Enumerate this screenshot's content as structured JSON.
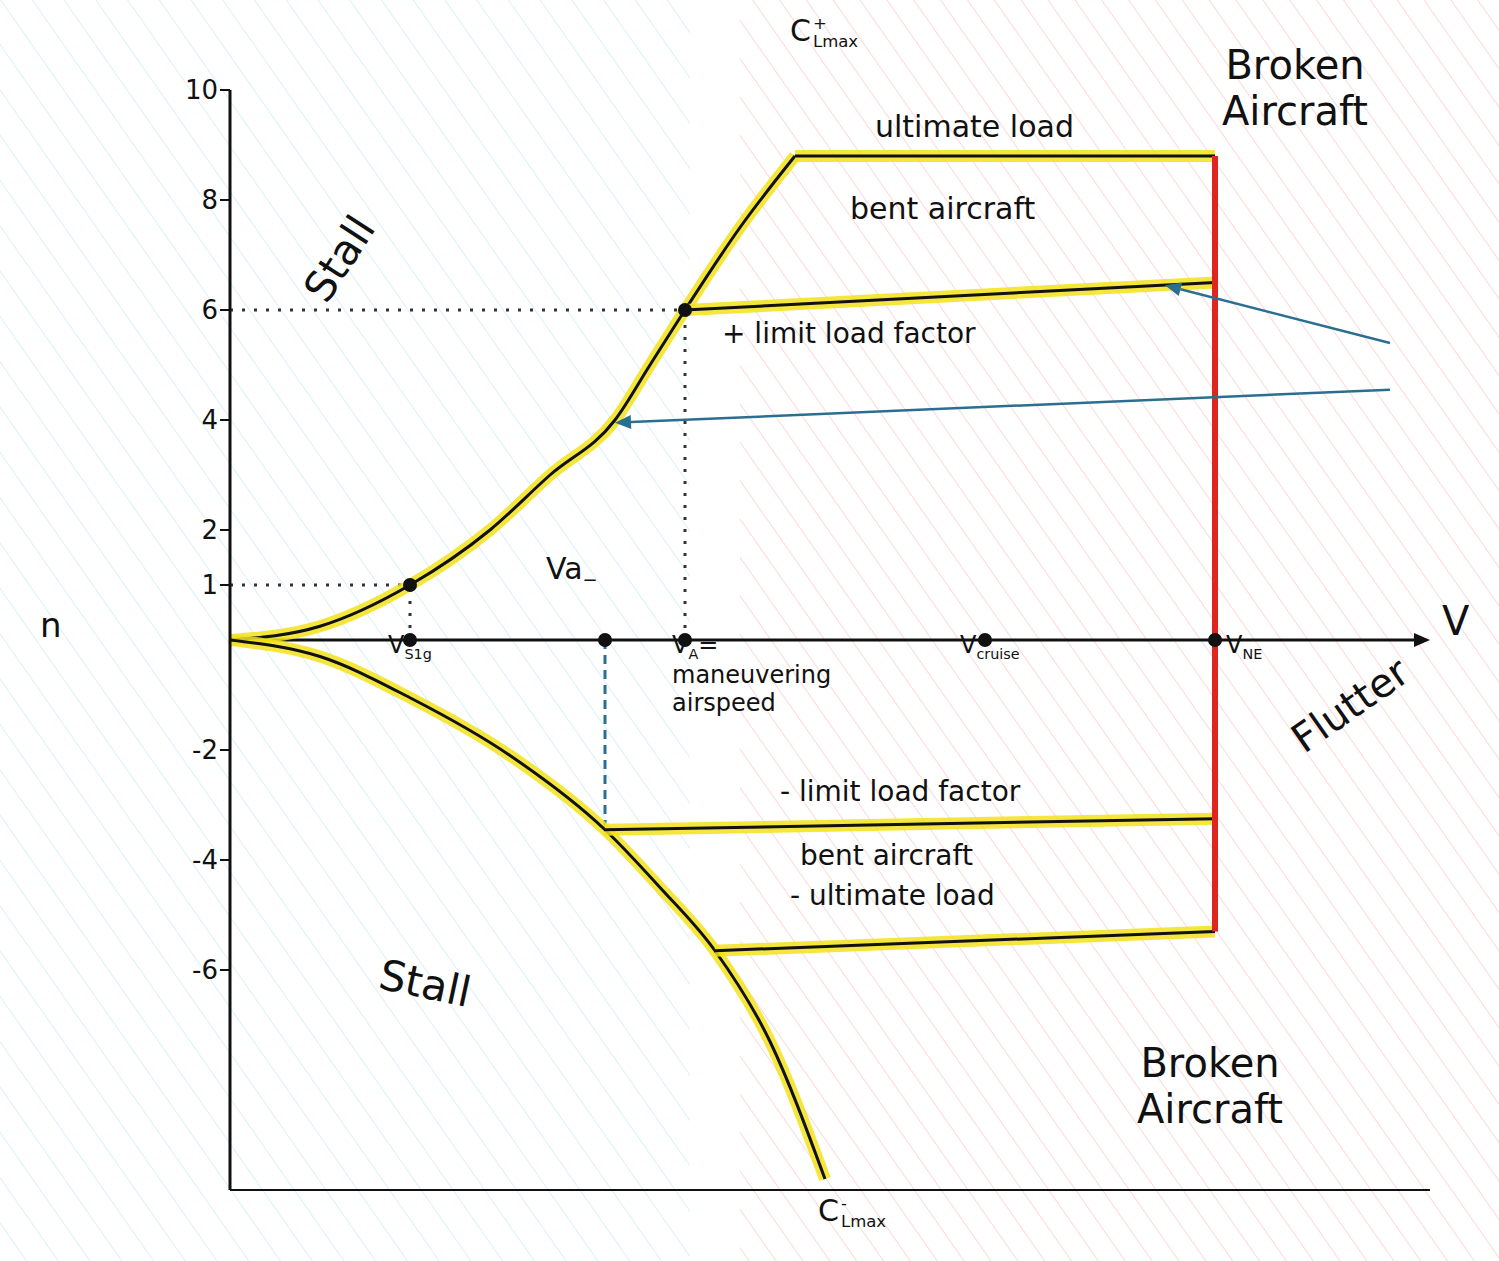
{
  "chart_data": {
    "type": "line",
    "x_label": "V",
    "y_label": "n",
    "xlim": [
      0,
      12
    ],
    "ylim": [
      -10,
      10
    ],
    "yticks": [
      -6,
      -4,
      -2,
      1,
      2,
      4,
      6,
      8,
      10
    ],
    "tick_labels": "y",
    "grid": false,
    "series": [
      {
        "name": {
          "text": "C",
          "sub": "Lmax",
          "sup": "+"
        },
        "color": "#111111",
        "x": [
          0,
          0.9,
          1.8,
          2.6,
          3.2,
          3.85,
          4.2,
          4.55,
          5.1,
          5.65
        ],
        "values": [
          0,
          0.25,
          1,
          2,
          3,
          4,
          5,
          6,
          7.5,
          8.8
        ]
      },
      {
        "name": {
          "text": "C",
          "sub": "Lmax",
          "sup": "-"
        },
        "color": "#111111",
        "x": [
          0,
          0.9,
          1.8,
          2.8,
          3.75,
          4.3,
          4.85,
          5.4,
          5.95
        ],
        "values": [
          0,
          -0.3,
          -1.05,
          -2.1,
          -3.45,
          -4.5,
          -5.65,
          -7.3,
          -9.8
        ]
      },
      {
        "name": "+ limit load factor",
        "color": "#111111",
        "x": [
          4.55,
          9.85
        ],
        "values": [
          6,
          6.5
        ]
      },
      {
        "name": "ultimate load",
        "color": "#111111",
        "x": [
          5.65,
          9.85
        ],
        "values": [
          8.8,
          8.8
        ]
      },
      {
        "name": "- limit load factor",
        "color": "#111111",
        "x": [
          3.75,
          9.85
        ],
        "values": [
          -3.45,
          -3.25
        ]
      },
      {
        "name": "- ultimate load",
        "color": "#111111",
        "x": [
          4.85,
          9.85
        ],
        "values": [
          -5.65,
          -5.3
        ]
      },
      {
        "color": "#e0241f",
        "x": [
          9.85,
          9.85
        ],
        "values": [
          8.8,
          -5.3
        ]
      }
    ],
    "axis_points": [
      {
        "label": {
          "text": "V",
          "sub": "S1g"
        },
        "x": 1.8
      },
      {
        "label": {
          "text": "Va",
          "sub": "−"
        },
        "x": 3.75
      },
      {
        "label": {
          "text": "V",
          "sub": "A",
          "rest": "= maneuvering airspeed"
        },
        "x": 4.55
      },
      {
        "label": {
          "text": "V",
          "sub": "cruise"
        },
        "x": 7.55
      },
      {
        "label": {
          "text": "V",
          "sub": "NE"
        },
        "x": 9.85
      }
    ],
    "guides": [
      {
        "x": 1.8,
        "y": 1,
        "line_style": "dotted",
        "marker": "circle"
      },
      {
        "x": 4.55,
        "y": 6,
        "line_style": "dotted",
        "marker": "circle"
      },
      {
        "x": 3.75,
        "y": -3.45,
        "line_style": "dashed",
        "color": "#2a6f8f"
      }
    ],
    "pointers": [
      {
        "x": [
          11.6,
          9.35
        ],
        "y": [
          5.4,
          6.45
        ],
        "color": "#2a6f8f"
      },
      {
        "x": [
          11.6,
          3.85
        ],
        "y": [
          4.55,
          3.95
        ],
        "color": "#2a6f8f"
      }
    ],
    "annotations": [
      "Stall",
      "Stall",
      "bent aircraft",
      "bent aircraft",
      "Broken Aircraft",
      "Broken Aircraft",
      "Flutter"
    ]
  }
}
